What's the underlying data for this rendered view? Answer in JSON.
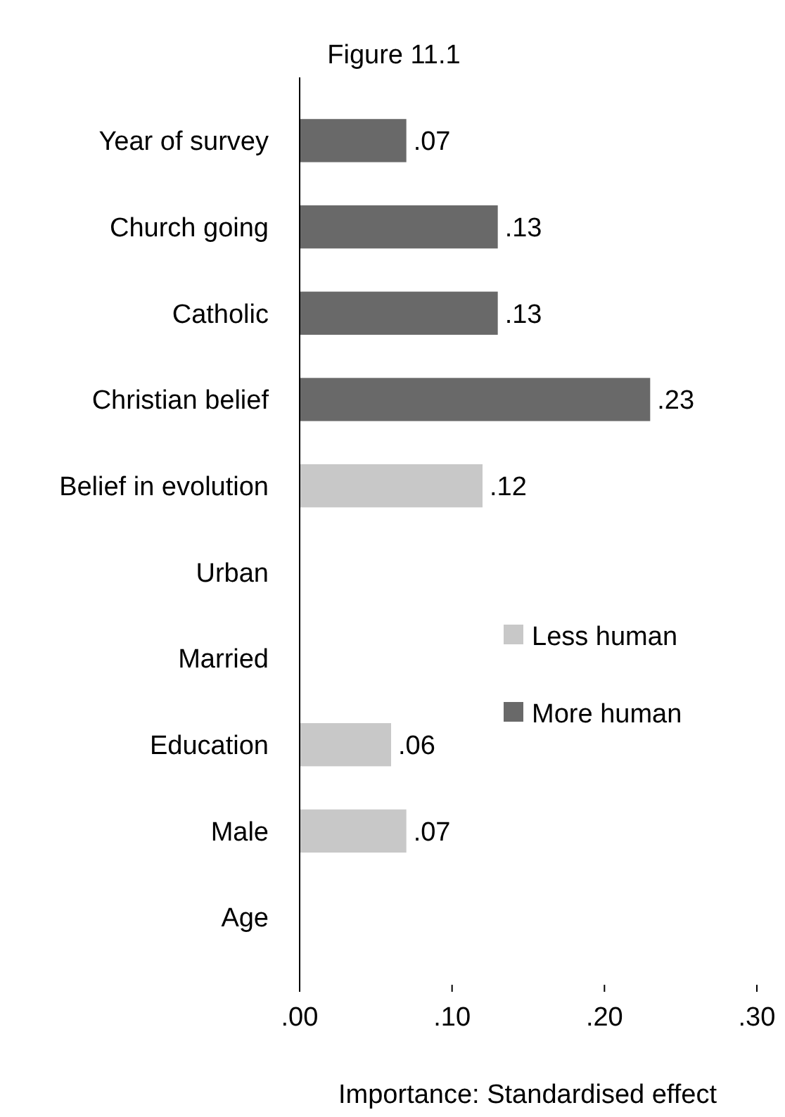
{
  "chart_data": {
    "type": "bar",
    "orientation": "horizontal",
    "title": "Figure 11.1",
    "xlabel": "Importance: Standardised effect",
    "categories": [
      "Year of survey",
      "Church going",
      "Catholic",
      "Christian belief",
      "Belief in evolution",
      "Urban",
      "Married",
      "Education",
      "Male",
      "Age"
    ],
    "series": [
      {
        "name": "Less human",
        "color": "#c8c8c8",
        "values": [
          null,
          null,
          null,
          null,
          0.12,
          null,
          null,
          0.06,
          0.07,
          null
        ],
        "value_labels": [
          null,
          null,
          null,
          null,
          ".12",
          null,
          null,
          ".06",
          ".07",
          null
        ]
      },
      {
        "name": "More human",
        "color": "#696969",
        "values": [
          0.07,
          0.13,
          0.13,
          0.23,
          null,
          null,
          null,
          null,
          null,
          null
        ],
        "value_labels": [
          ".07",
          ".13",
          ".13",
          ".23",
          null,
          null,
          null,
          null,
          null,
          null
        ]
      }
    ],
    "xlim": [
      0,
      0.3
    ],
    "xticks": [
      {
        "value": 0,
        "label": ".00"
      },
      {
        "value": 0.1,
        "label": ".10"
      },
      {
        "value": 0.2,
        "label": ".20"
      },
      {
        "value": 0.3,
        "label": ".30"
      }
    ],
    "legend": "right",
    "grid": false
  }
}
